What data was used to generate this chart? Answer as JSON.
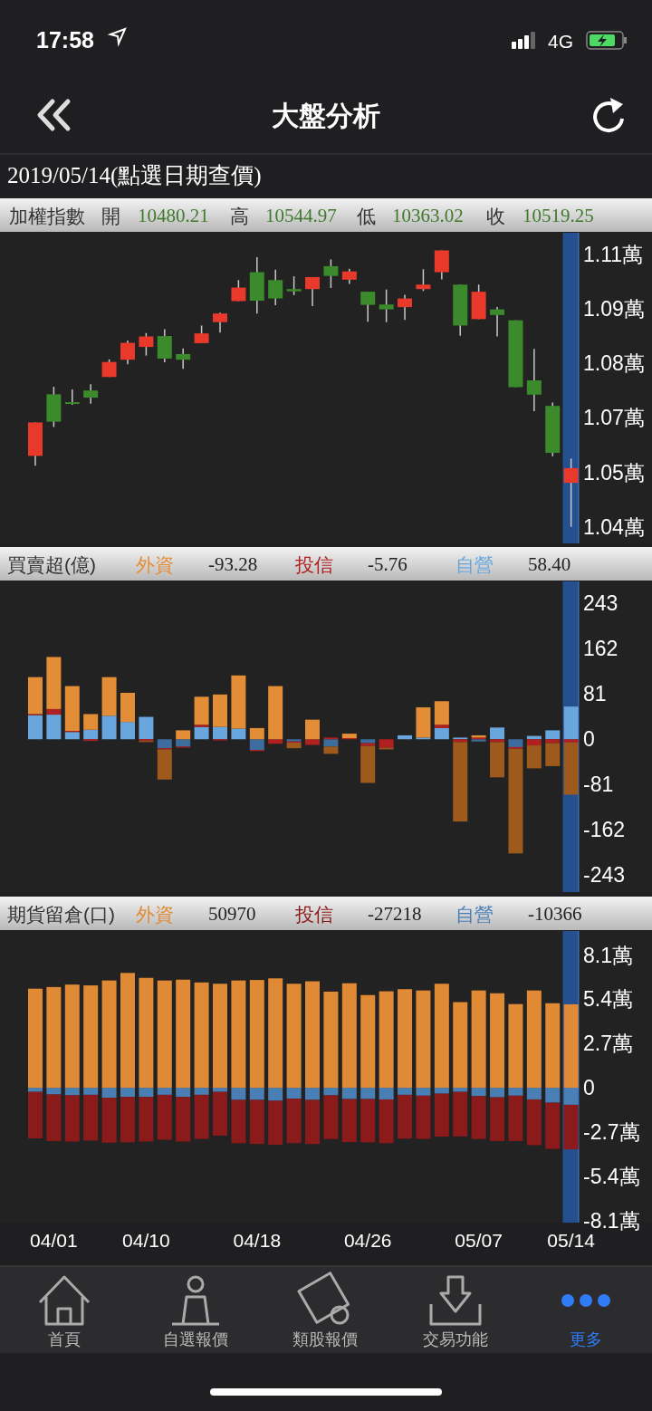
{
  "chart_data": [
    {
      "type": "candlestick",
      "title": "大盤分析",
      "subtitle": "2019/05/14(點選日期查價)",
      "categories": [
        null,
        "04/01",
        null,
        null,
        null,
        null,
        "04/10",
        null,
        null,
        null,
        null,
        null,
        "04/18",
        null,
        null,
        null,
        null,
        null,
        "04/26",
        null,
        null,
        null,
        null,
        null,
        "05/07",
        null,
        null,
        null,
        null,
        "05/14"
      ],
      "ohlc": [
        [
          1.0552,
          1.0641,
          1.0526,
          1.0641
        ],
        [
          1.0716,
          1.0736,
          1.0629,
          1.0643
        ],
        [
          1.0695,
          1.0729,
          1.0688,
          1.0693
        ],
        [
          1.0726,
          1.0743,
          1.0691,
          1.0707
        ],
        [
          1.0762,
          1.0809,
          1.0762,
          1.0802
        ],
        [
          1.0808,
          1.0859,
          1.0796,
          1.0853
        ],
        [
          1.0842,
          1.0879,
          1.0819,
          1.087
        ],
        [
          1.0871,
          1.0889,
          1.0801,
          1.0811
        ],
        [
          1.0823,
          1.0838,
          1.0784,
          1.0808
        ],
        [
          1.0852,
          1.0899,
          1.0852,
          1.0878
        ],
        [
          1.0908,
          1.0933,
          1.088,
          1.0931
        ],
        [
          1.0964,
          1.102,
          1.0964,
          1.1
        ],
        [
          1.1041,
          1.1081,
          1.0931,
          1.0965
        ],
        [
          1.102,
          1.1048,
          1.0953,
          1.0971
        ],
        [
          1.0996,
          1.103,
          1.098,
          1.099
        ],
        [
          1.0996,
          1.1028,
          1.0951,
          1.1028
        ],
        [
          1.1057,
          1.1075,
          1.0999,
          1.1031
        ],
        [
          1.1021,
          1.105,
          1.101,
          1.1043
        ],
        [
          1.0989,
          1.0989,
          1.0909,
          1.0954
        ],
        [
          1.0955,
          1.0995,
          1.0908,
          1.0942
        ],
        [
          1.0948,
          1.0981,
          1.0914,
          1.0971
        ],
        [
          1.0996,
          1.1049,
          1.0991,
          1.1008
        ],
        [
          1.1041,
          1.1099,
          1.1022,
          1.1099
        ],
        [
          1.1008,
          1.1008,
          1.0872,
          1.0899
        ],
        [
          1.0916,
          1.1008,
          1.0916,
          1.0989
        ],
        [
          1.0942,
          1.0948,
          1.087,
          1.0927
        ],
        [
          1.0913,
          1.0913,
          1.0735,
          1.0735
        ],
        [
          1.0753,
          1.0837,
          1.0671,
          1.0715
        ],
        [
          1.0685,
          1.0694,
          1.0551,
          1.056
        ],
        [
          1.048021,
          1.054497,
          1.036302,
          1.051925
        ]
      ],
      "colors": [
        "#e8392a",
        "#3b8a2b",
        "#3b8a2b",
        "#3b8a2b",
        "#e8392a",
        "#e8392a",
        "#e8392a",
        "#3b8a2b",
        "#3b8a2b",
        "#e8392a",
        "#e8392a",
        "#e8392a",
        "#3b8a2b",
        "#3b8a2b",
        "#3b8a2b",
        "#e8392a",
        "#3b8a2b",
        "#e8392a",
        "#3b8a2b",
        "#3b8a2b",
        "#e8392a",
        "#e8392a",
        "#e8392a",
        "#3b8a2b",
        "#e8392a",
        "#3b8a2b",
        "#3b8a2b",
        "#3b8a2b",
        "#3b8a2b",
        "#e8392a"
      ],
      "ylim": [
        1.0319,
        1.1146
      ],
      "yticks": [
        {
          "value": 1.0363,
          "label": "1.04萬"
        },
        {
          "value": 1.0508,
          "label": "1.05萬"
        },
        {
          "value": 1.0653,
          "label": "1.07萬"
        },
        {
          "value": 1.0798,
          "label": "1.08萬"
        },
        {
          "value": 1.0943,
          "label": "1.09萬"
        },
        {
          "value": 1.1088,
          "label": "1.11萬"
        }
      ],
      "tick_labels": "y",
      "bands": [
        {
          "axis": "x",
          "from": "05/14",
          "to": "05/14",
          "color": "#24508f"
        }
      ],
      "annotations": [
        "加權指數",
        "開",
        "10480.21",
        "高",
        "10544.97",
        "低",
        "10363.02",
        "收",
        "10519.25",
        "17:58",
        "4G",
        "首頁",
        "自選報價",
        "類股報價",
        "交易功能",
        "更多"
      ]
    },
    {
      "type": "bar",
      "stacked": true,
      "title": "買賣超(億)",
      "legend": "top",
      "categories": [
        null,
        "04/01",
        null,
        null,
        null,
        null,
        "04/10",
        null,
        null,
        null,
        null,
        null,
        "04/18",
        null,
        null,
        null,
        null,
        null,
        "04/26",
        null,
        null,
        null,
        null,
        null,
        "05/07",
        null,
        null,
        null,
        null,
        "05/14"
      ],
      "series": [
        {
          "name": "自營",
          "color": "#6aa6de",
          "values": [
            43,
            44,
            13,
            17,
            42,
            31,
            40,
            -16,
            -13,
            22,
            22,
            19,
            -19,
            0,
            -4,
            0,
            -13,
            0,
            -7,
            0,
            7,
            3,
            20,
            3,
            -4,
            21,
            -14,
            6,
            16,
            58.4
          ],
          "colors": [
            "#6aa6de",
            "#6aa6de",
            "#6aa6de",
            "#6aa6de",
            "#6aa6de",
            "#6aa6de",
            "#6aa6de",
            "#3d6d9e",
            "#3d6d9e",
            "#6aa6de",
            "#6aa6de",
            "#6aa6de",
            "#3d6d9e",
            "#6aa6de",
            "#3d6d9e",
            "#6aa6de",
            "#3d6d9e",
            "#6aa6de",
            "#3d6d9e",
            "#6aa6de",
            "#6aa6de",
            "#6aa6de",
            "#6aa6de",
            "#6aa6de",
            "#3d6d9e",
            "#6aa6de",
            "#3d6d9e",
            "#6aa6de",
            "#6aa6de",
            "#6aa6de"
          ]
        },
        {
          "name": "投信",
          "color": "#b02020",
          "values": [
            2,
            10,
            2,
            -3,
            null,
            null,
            -3,
            -2,
            -2,
            4,
            -2,
            0,
            -2,
            -8,
            -2,
            -10,
            3,
            2,
            -5,
            -15,
            0,
            0,
            6,
            -5,
            3,
            -5,
            -3,
            -11,
            -7,
            -5.76
          ]
        },
        {
          "name": "外資",
          "color": "#e38e36",
          "values": [
            66,
            93,
            80,
            28,
            69,
            52,
            -2,
            -54,
            16,
            50,
            58,
            95,
            20,
            95,
            -10,
            35,
            -13,
            8,
            -66,
            -3,
            0,
            54,
            42,
            -142,
            4,
            -63,
            -187,
            -41,
            -41,
            -93.28
          ],
          "colors": [
            "#e38e36",
            "#e38e36",
            "#e38e36",
            "#e38e36",
            "#e38e36",
            "#e38e36",
            "#9e5a1c",
            "#9e5a1c",
            "#e38e36",
            "#e38e36",
            "#e38e36",
            "#e38e36",
            "#e38e36",
            "#e38e36",
            "#9e5a1c",
            "#e38e36",
            "#9e5a1c",
            "#e38e36",
            "#9e5a1c",
            "#9e5a1c",
            "#e38e36",
            "#e38e36",
            "#e38e36",
            "#9e5a1c",
            "#e38e36",
            "#9e5a1c",
            "#9e5a1c",
            "#9e5a1c",
            "#9e5a1c",
            "#9e5a1c"
          ]
        }
      ],
      "ylim": [
        -273,
        282
      ],
      "yticks": [
        243,
        162,
        81,
        0,
        -81,
        -162,
        -243
      ],
      "tick_labels": "y",
      "bands": [
        {
          "axis": "x",
          "from": "05/14",
          "to": "05/14",
          "color": "#24508f"
        }
      ],
      "annotations": [
        "-93.28",
        "-5.76",
        "58.40"
      ]
    },
    {
      "type": "bar",
      "stacked": true,
      "title": "期貨留倉(口)",
      "legend": "top",
      "categories": [
        null,
        "04/01",
        null,
        null,
        null,
        null,
        "04/10",
        null,
        null,
        null,
        null,
        null,
        "04/18",
        null,
        null,
        null,
        null,
        null,
        "04/26",
        null,
        null,
        null,
        null,
        null,
        "05/07",
        null,
        null,
        null,
        null,
        "05/14"
      ],
      "series": [
        {
          "name": "自營",
          "color": "#4a7fb5",
          "values": [
            -0.25,
            -0.41,
            -0.46,
            -0.43,
            -0.61,
            -0.56,
            -0.56,
            -0.43,
            -0.56,
            -0.43,
            -0.25,
            -0.74,
            -0.74,
            -0.79,
            -0.66,
            -0.74,
            -0.46,
            -0.69,
            -0.69,
            -0.71,
            -0.43,
            -0.48,
            -0.36,
            -0.25,
            -0.51,
            -0.58,
            -0.48,
            -0.71,
            -0.91,
            -1.0366
          ]
        },
        {
          "name": "投信",
          "color": "#8b1a1a",
          "values": [
            -2.84,
            -2.84,
            -2.82,
            -2.79,
            -2.74,
            -2.77,
            -2.72,
            -2.74,
            -2.72,
            -2.69,
            -2.67,
            -2.64,
            -2.69,
            -2.69,
            -2.72,
            -2.69,
            -2.67,
            -2.62,
            -2.64,
            -2.67,
            -2.67,
            -2.64,
            -2.62,
            -2.72,
            -2.62,
            -2.67,
            -2.77,
            -2.79,
            -2.82,
            -2.7218
          ]
        },
        {
          "name": "外資",
          "color": "#e08a35",
          "values": [
            6.05,
            6.15,
            6.3,
            6.25,
            6.55,
            7.01,
            6.71,
            6.55,
            6.6,
            6.43,
            6.35,
            6.55,
            6.58,
            6.68,
            6.35,
            6.5,
            5.87,
            6.38,
            5.66,
            5.89,
            6.02,
            5.94,
            6.35,
            5.23,
            5.94,
            5.77,
            5.11,
            5.94,
            5.16,
            5.097
          ]
        }
      ],
      "ylim": [
        -8.23,
        9.57
      ],
      "yticks": [
        {
          "value": 8.1,
          "label": "8.1萬"
        },
        {
          "value": 5.4,
          "label": "5.4萬"
        },
        {
          "value": 2.7,
          "label": "2.7萬"
        },
        0,
        {
          "value": -2.7,
          "label": "-2.7萬"
        },
        {
          "value": -5.4,
          "label": "-5.4萬"
        },
        {
          "value": -8.1,
          "label": "-8.1萬"
        }
      ],
      "bands": [
        {
          "axis": "x",
          "from": "05/14",
          "to": "05/14",
          "color": "#24508f"
        }
      ],
      "annotations": [
        "50970",
        "-27218",
        "-10366"
      ]
    }
  ]
}
